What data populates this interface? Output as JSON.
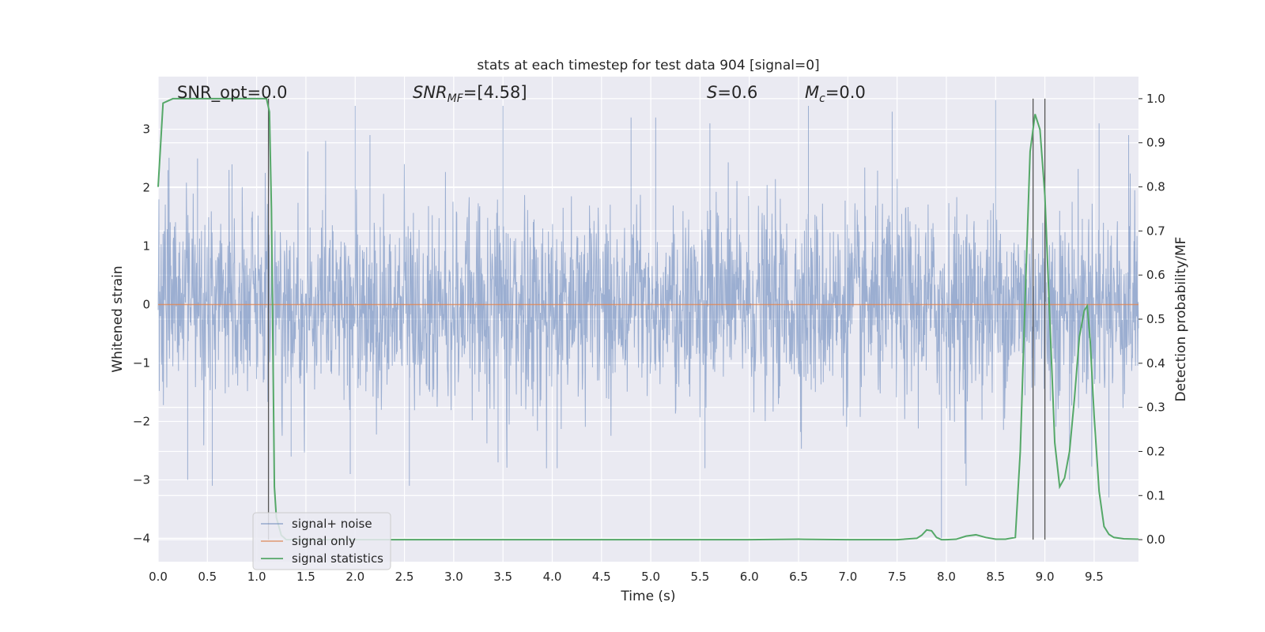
{
  "chart_data": {
    "type": "line",
    "title": "stats at each timestep for test data 904 [signal=0]",
    "xlabel": "Time (s)",
    "ylabel_left": "Whitened strain",
    "ylabel_right": "Detection probability/MF",
    "xlim": [
      0.0,
      9.95
    ],
    "ylim_left": [
      -4.4,
      3.9
    ],
    "ylim_right": [
      -0.05,
      1.05
    ],
    "xticks": [
      "0.0",
      "0.5",
      "1.0",
      "1.5",
      "2.0",
      "2.5",
      "3.0",
      "3.5",
      "4.0",
      "4.5",
      "5.0",
      "5.5",
      "6.0",
      "6.5",
      "7.0",
      "7.5",
      "8.0",
      "8.5",
      "9.0",
      "9.5"
    ],
    "yticks_left": [
      "3",
      "2",
      "1",
      "0",
      "−1",
      "−2",
      "−3",
      "−4"
    ],
    "yticks_right": [
      "1.0",
      "0.9",
      "0.8",
      "0.7",
      "0.6",
      "0.5",
      "0.4",
      "0.3",
      "0.2",
      "0.1",
      "0.0"
    ],
    "grid": true,
    "legend_placement": "lower-left",
    "annotations": {
      "snr_opt": "SNR_opt=0.0",
      "snr_mf_sym": "SNR",
      "snr_mf_sub": "MF",
      "snr_mf_val": "=[4.58]",
      "s_sym": "S",
      "s_val": "=0.6",
      "mc_sym": "M",
      "mc_sub": "c",
      "mc_val": "=0.0"
    },
    "vertical_lines_x": [
      1.12,
      8.88,
      9.0
    ],
    "series": [
      {
        "name": "signal+ noise",
        "color": "#4c72b0",
        "axis": "left",
        "description_note": "dense noise trace",
        "envelope_peaks_x": [
          0.1,
          0.4,
          0.75,
          1.7,
          2.0,
          2.15,
          3.5,
          4.8,
          5.05,
          5.6,
          6.6,
          7.45,
          8.5,
          9.55,
          9.85
        ],
        "envelope_peaks_y": [
          2.3,
          2.5,
          2.4,
          2.8,
          3.4,
          2.9,
          3.4,
          3.2,
          3.2,
          3.1,
          3.4,
          3.3,
          3.5,
          3.1,
          2.9
        ],
        "envelope_troughs_x": [
          0.3,
          0.55,
          1.35,
          1.95,
          2.55,
          3.45,
          4.05,
          5.55,
          7.95,
          8.2,
          9.0,
          9.25,
          9.65
        ],
        "envelope_troughs_y": [
          -3.0,
          -3.1,
          -2.6,
          -2.9,
          -3.1,
          -2.7,
          -2.8,
          -2.8,
          -4.0,
          -3.1,
          -3.0,
          -3.0,
          -3.3
        ]
      },
      {
        "name": "signal only",
        "color": "#dd8452",
        "axis": "left",
        "x": [
          0.0,
          9.95
        ],
        "y": [
          0.0,
          0.0
        ]
      },
      {
        "name": "signal statistics",
        "color": "#55a868",
        "axis": "right",
        "x": [
          0.0,
          0.05,
          0.1,
          0.15,
          0.2,
          0.3,
          0.5,
          0.8,
          1.0,
          1.05,
          1.1,
          1.13,
          1.15,
          1.18,
          1.2,
          1.25,
          1.3,
          1.4,
          2.0,
          3.0,
          4.0,
          5.0,
          6.0,
          6.5,
          7.0,
          7.5,
          7.7,
          7.75,
          7.8,
          7.85,
          7.9,
          7.95,
          8.0,
          8.1,
          8.2,
          8.3,
          8.4,
          8.5,
          8.6,
          8.7,
          8.75,
          8.8,
          8.85,
          8.9,
          8.95,
          9.0,
          9.05,
          9.1,
          9.15,
          9.2,
          9.25,
          9.3,
          9.35,
          9.4,
          9.43,
          9.46,
          9.5,
          9.55,
          9.6,
          9.65,
          9.7,
          9.8,
          9.95
        ],
        "y": [
          0.8,
          0.99,
          0.995,
          1.0,
          1.0,
          1.0,
          1.0,
          1.0,
          1.0,
          1.0,
          1.0,
          0.97,
          0.75,
          0.12,
          0.05,
          0.01,
          0.0,
          0.0,
          0.0,
          0.0,
          0.0,
          0.0,
          0.0,
          0.001,
          0.0,
          0.0,
          0.003,
          0.01,
          0.022,
          0.02,
          0.005,
          0.0,
          0.0,
          0.001,
          0.008,
          0.011,
          0.005,
          0.001,
          0.001,
          0.005,
          0.2,
          0.55,
          0.88,
          0.965,
          0.93,
          0.78,
          0.5,
          0.22,
          0.12,
          0.14,
          0.2,
          0.32,
          0.46,
          0.52,
          0.53,
          0.45,
          0.28,
          0.11,
          0.03,
          0.012,
          0.005,
          0.002,
          0.001
        ]
      }
    ]
  }
}
